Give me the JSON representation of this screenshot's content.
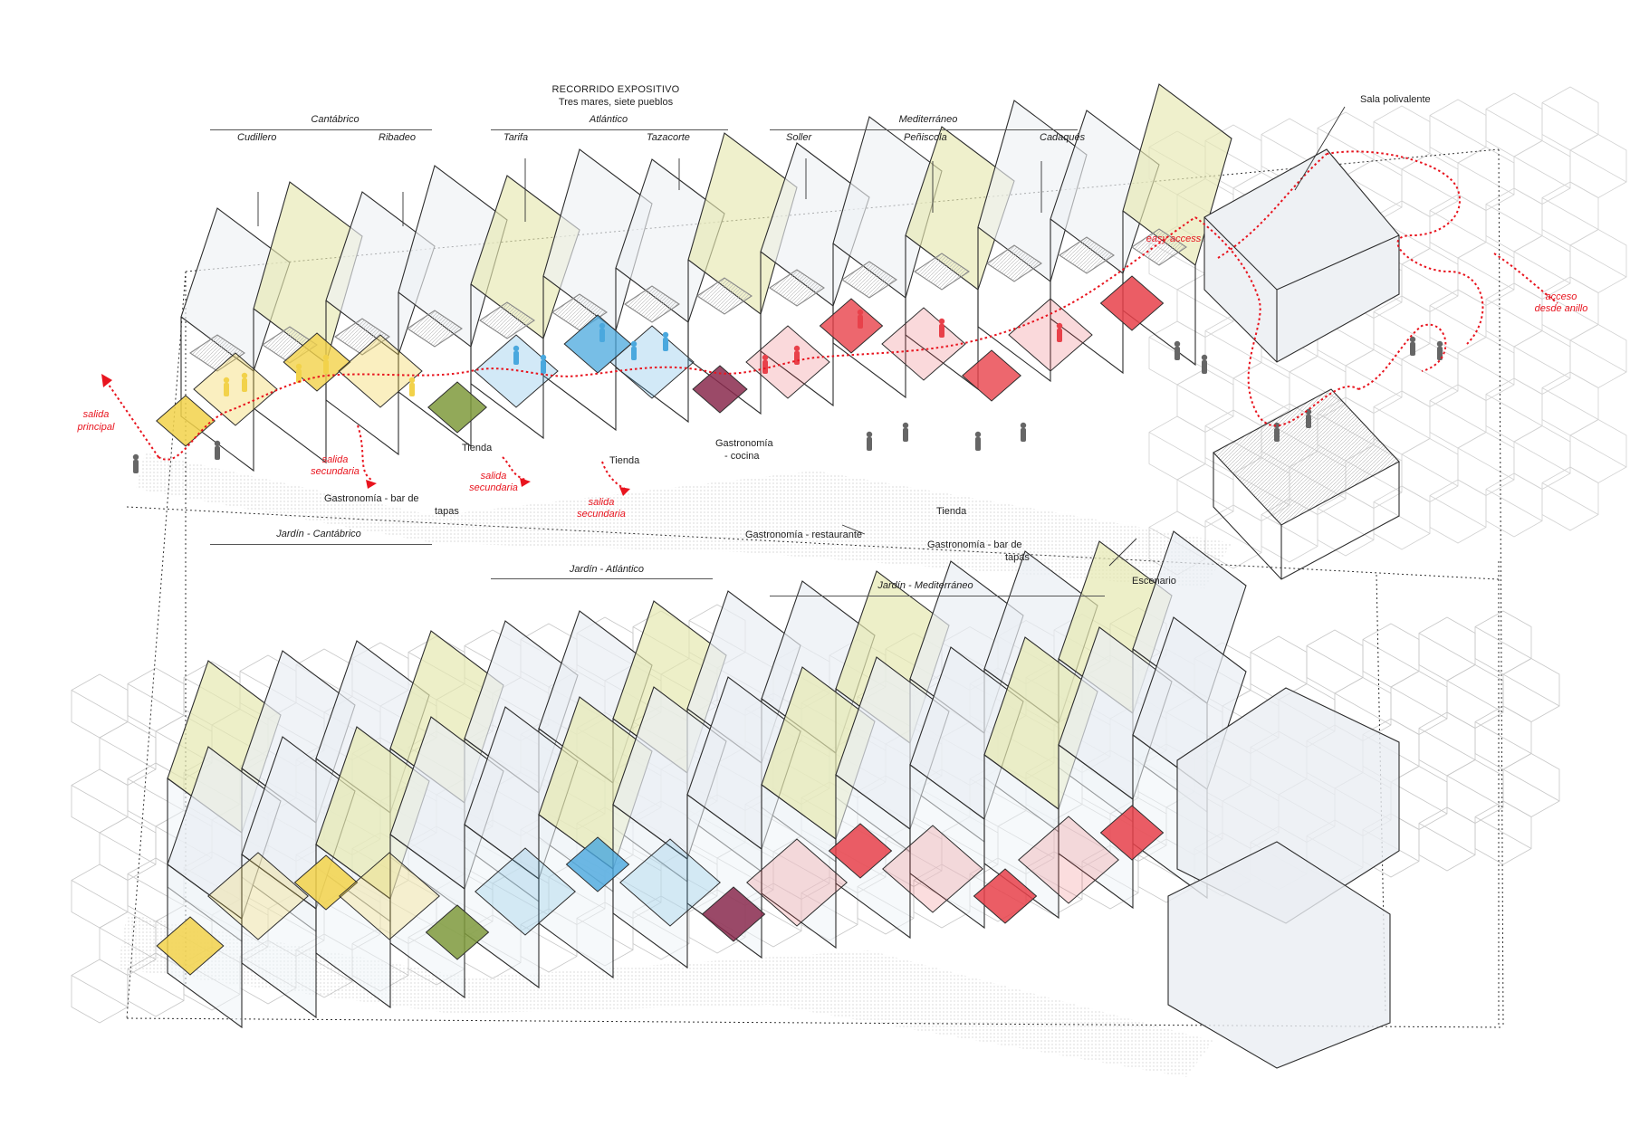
{
  "header": {
    "title": "RECORRIDO EXPOSITIVO",
    "subtitle": "Tres mares, siete pueblos"
  },
  "seas": {
    "cantabrico": "Cantábrico",
    "atlantico": "Atlántico",
    "mediterraneo": "Mediterráneo"
  },
  "towns": {
    "cudillero": "Cudillero",
    "ribadeo": "Ribadeo",
    "tarifa": "Tarifa",
    "tazacorte": "Tazacorte",
    "soller": "Soller",
    "peniscola": "Peñiscola",
    "cadaques": "Cadaqués"
  },
  "spaces": {
    "sala_polivalente": "Sala polivalente",
    "tienda_1": "Tienda",
    "tienda_2": "Tienda",
    "tienda_3": "Tienda",
    "gastro_cocina_1": "Gastronomía",
    "gastro_cocina_2": "- cocina",
    "gastro_bar_1_a": "Gastronomía - bar de",
    "gastro_bar_1_b": "tapas",
    "gastro_restaurante": "Gastronomía - restaurante",
    "gastro_bar_2_a": "Gastronomía - bar de",
    "gastro_bar_2_b": "tapas",
    "escenario": "Escenario"
  },
  "gardens": {
    "cantabrico": "Jardín - Cantábrico",
    "atlantico": "Jardín - Atlántico",
    "mediterraneo": "Jardín - Mediterráneo"
  },
  "route": {
    "salida_principal_1": "salida",
    "salida_principal_2": "principal",
    "salida_sec_a_1": "salida",
    "salida_sec_a_2": "secundaria",
    "salida_sec_b_1": "salida",
    "salida_sec_b_2": "secundaria",
    "salida_sec_c_1": "salida",
    "salida_sec_c_2": "secundaria",
    "easy_access": "easy access",
    "acceso_1": "acceso",
    "acceso_2": "desde anillo"
  },
  "colors": {
    "cantabrico": "#f2d24a",
    "cantabrico_green": "#7f9a3c",
    "atlantico": "#4aa8de",
    "mediterraneo": "#e8414a",
    "mediterraneo_dark": "#8a2a4e",
    "roof_yellow": "#e6e8b0",
    "route_red": "#e8141e",
    "line": "#333333"
  }
}
